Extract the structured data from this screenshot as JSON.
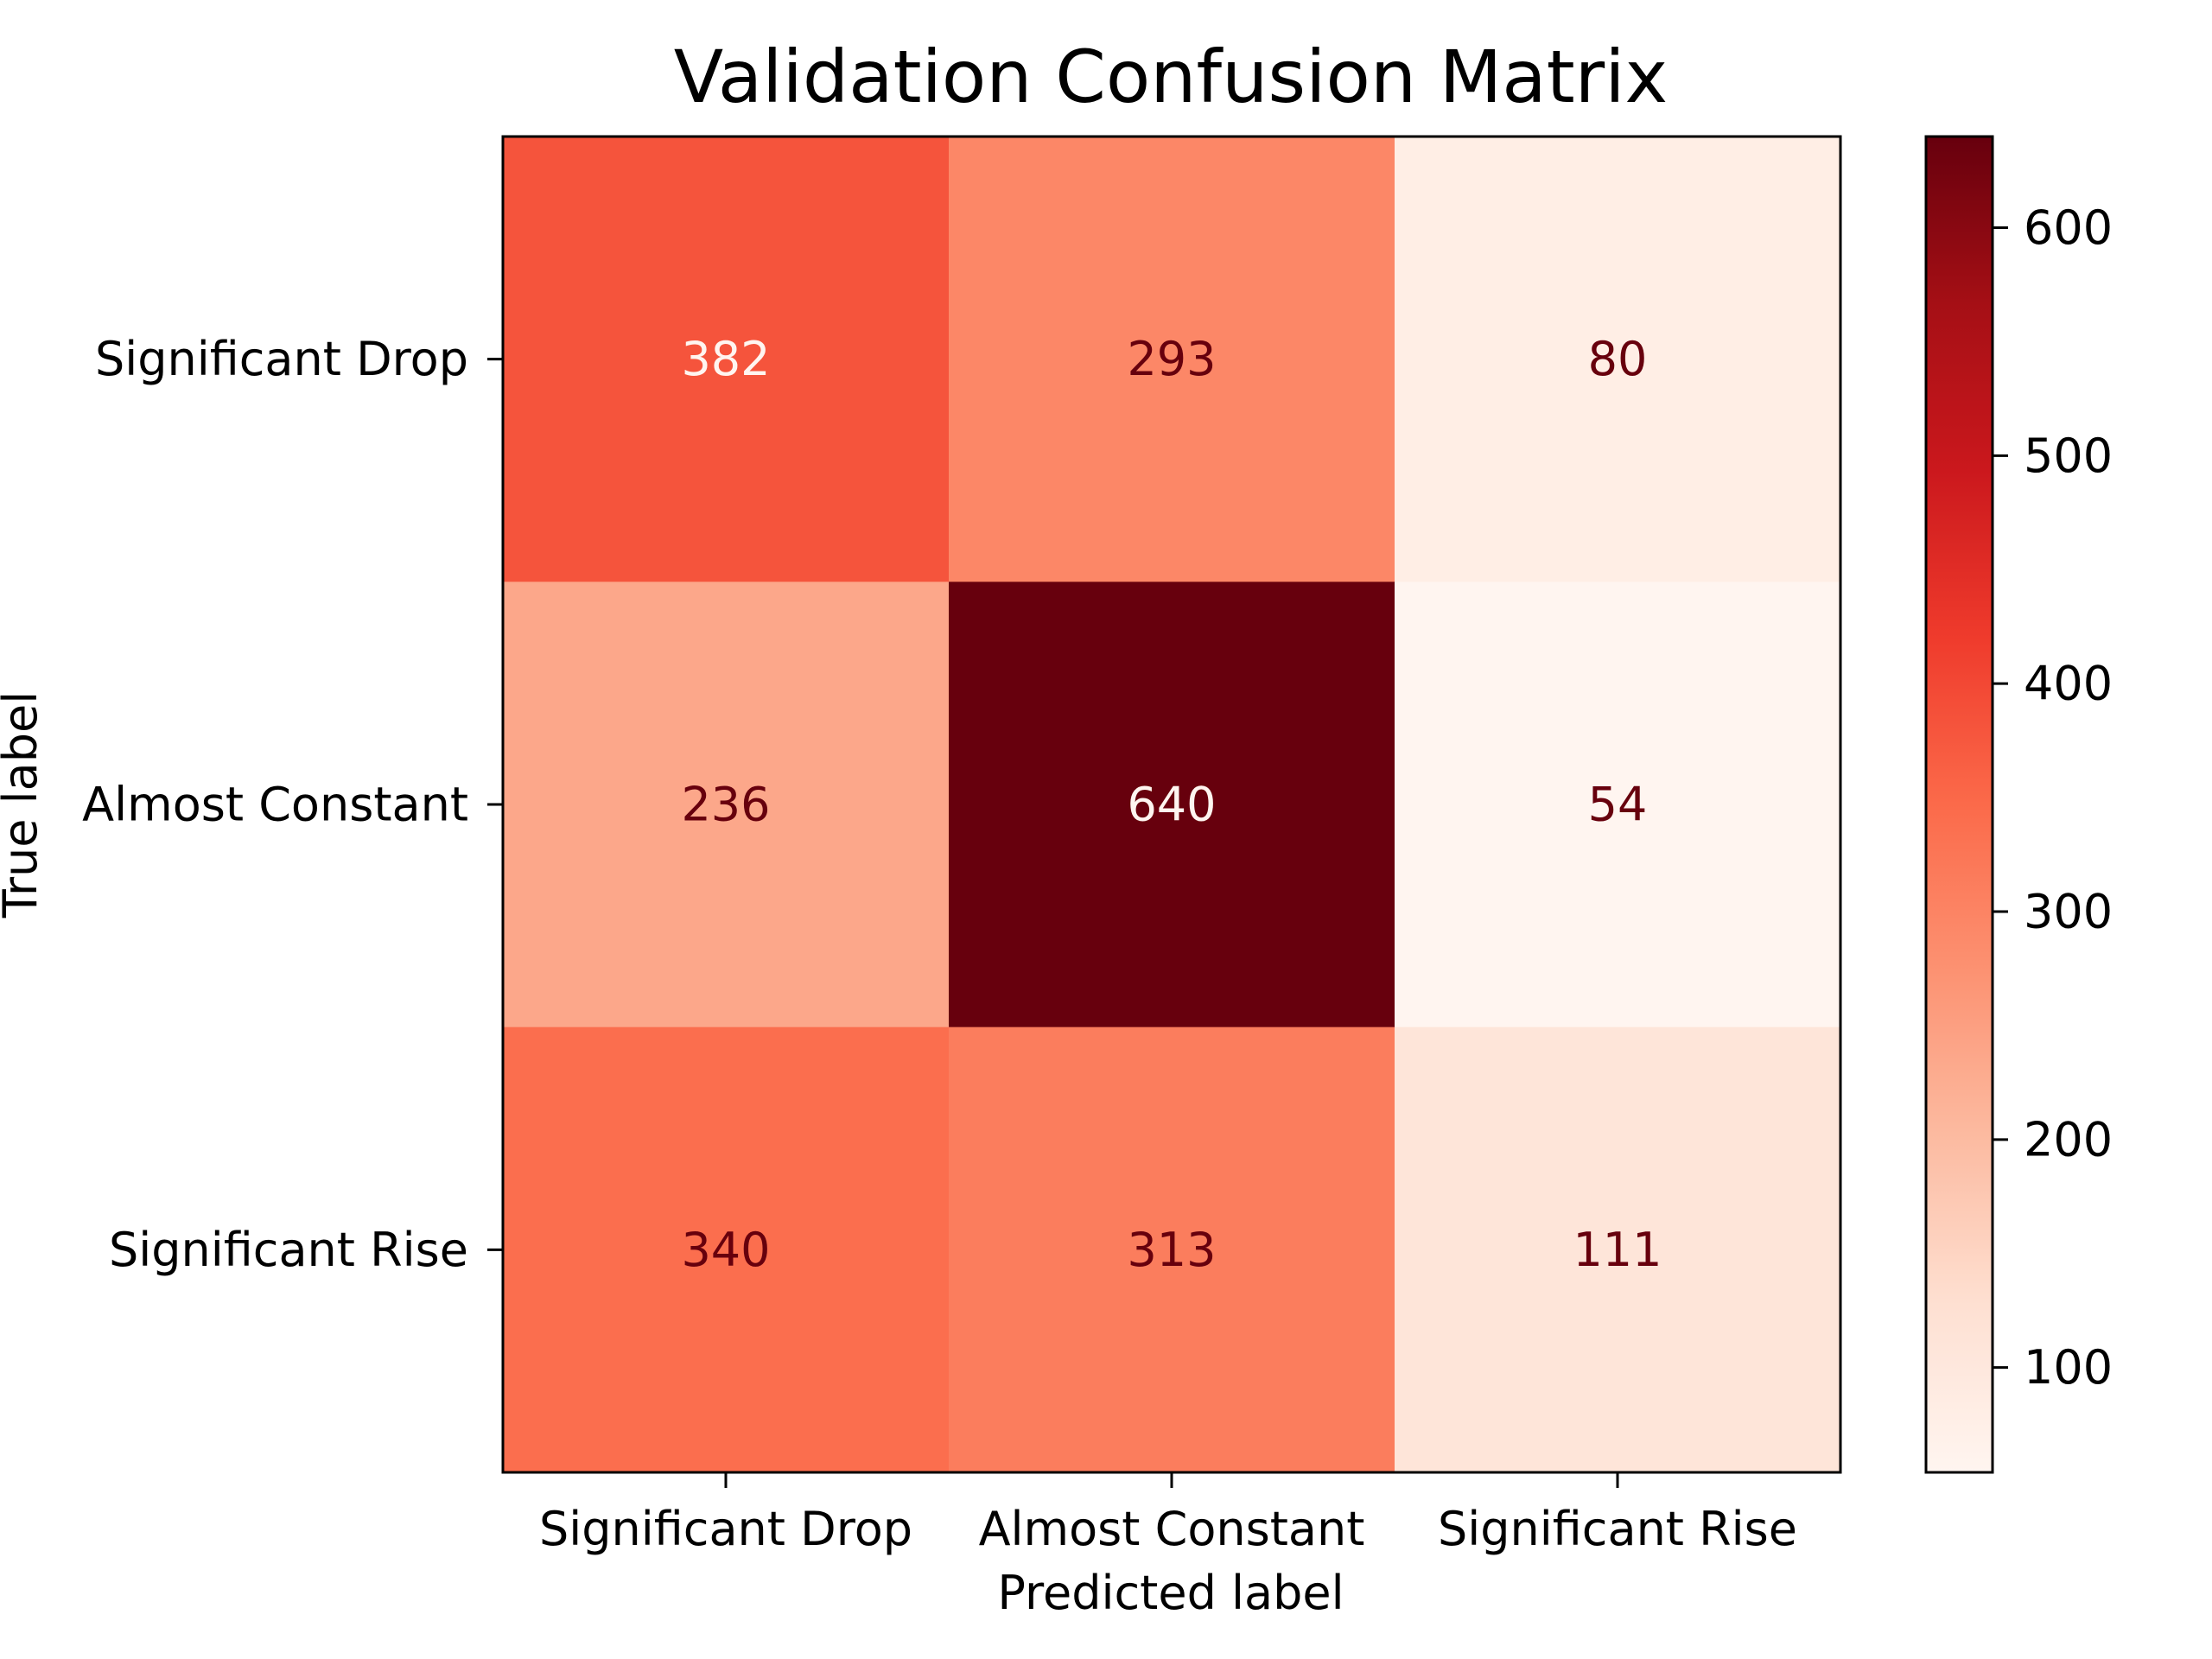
{
  "chart_data": {
    "type": "heatmap",
    "title": "Validation Confusion Matrix",
    "xlabel": "Predicted label",
    "ylabel": "True label",
    "x_categories": [
      "Significant Drop",
      "Almost Constant",
      "Significant Rise"
    ],
    "y_categories": [
      "Significant Drop",
      "Almost Constant",
      "Significant Rise"
    ],
    "values": [
      [
        382,
        293,
        80
      ],
      [
        236,
        640,
        54
      ],
      [
        340,
        313,
        111
      ]
    ],
    "colormap": "Reds",
    "colorbar": {
      "vmin": 54,
      "vmax": 640,
      "ticks": [
        100,
        200,
        300,
        400,
        500,
        600
      ]
    },
    "grid": false,
    "colorbar_position": "right"
  }
}
